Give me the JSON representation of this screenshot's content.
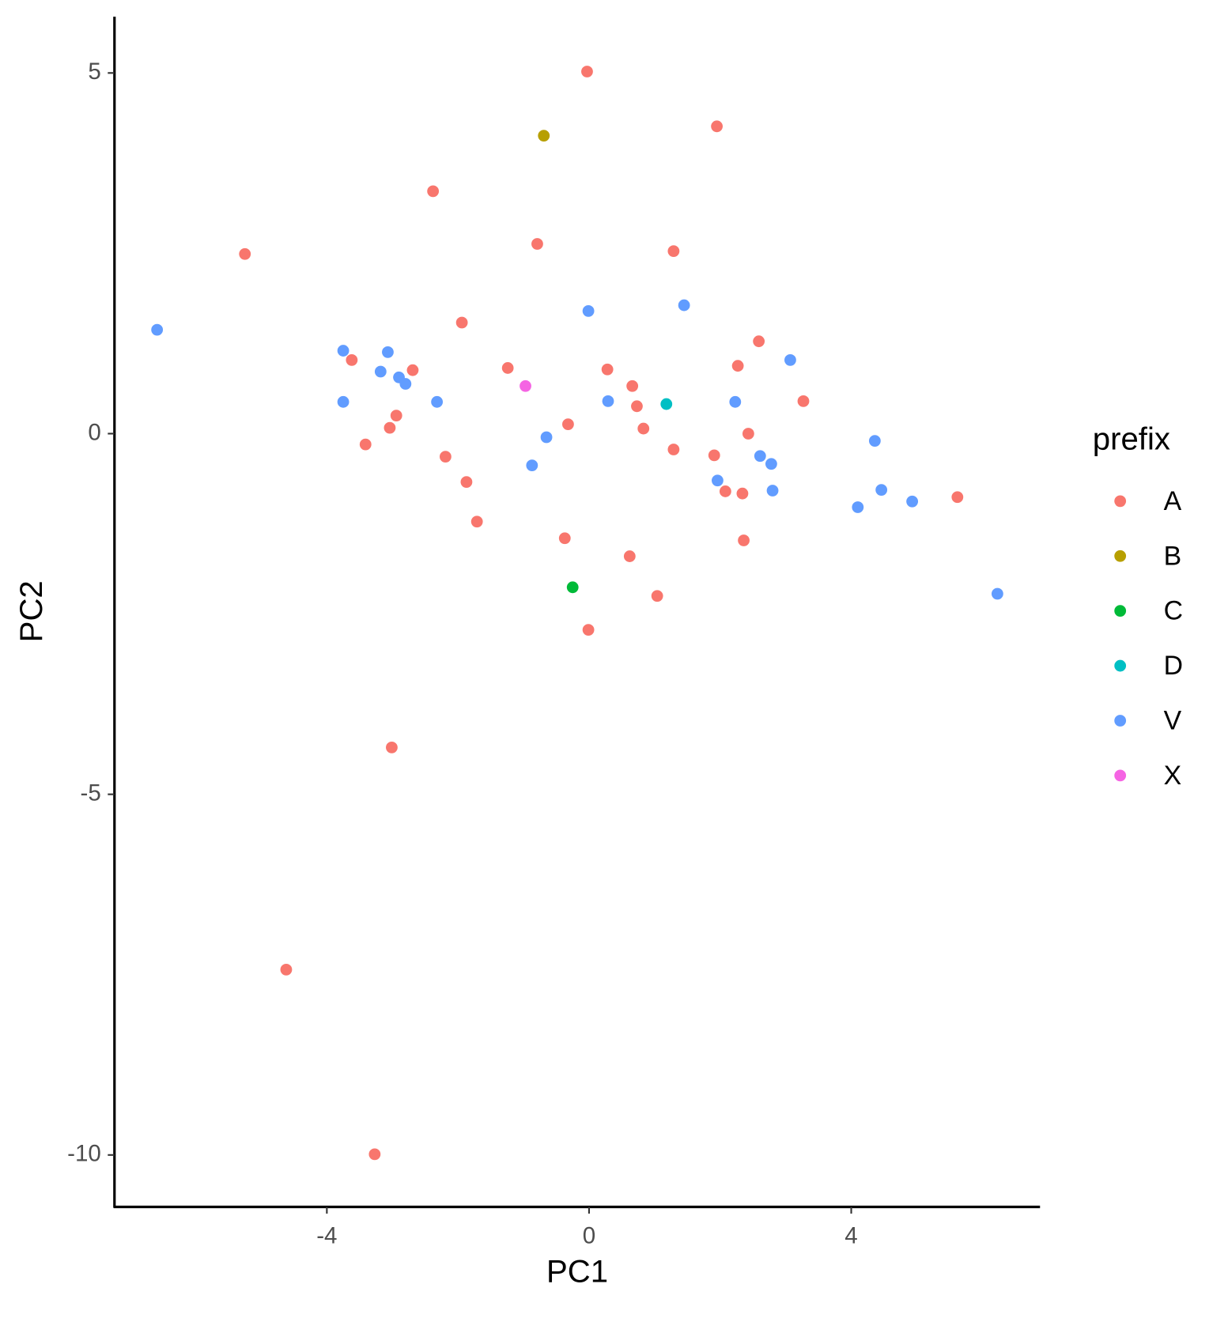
{
  "chart_data": {
    "type": "scatter",
    "x_label": "PC1",
    "y_label": "PC2",
    "legend_title": "prefix",
    "xlim": [
      -7.24,
      6.88
    ],
    "ylim": [
      -10.72,
      5.78
    ],
    "xticks": [
      -4,
      0,
      4
    ],
    "yticks": [
      5,
      0,
      -5,
      -10
    ],
    "grid": false,
    "legend": "right",
    "series": [
      {
        "name": "A",
        "color": "#F8766D",
        "x": [
          -0.03,
          1.95,
          -2.38,
          -5.25,
          -0.79,
          1.29,
          -1.94,
          -3.62,
          -2.69,
          -1.24,
          0.28,
          2.59,
          2.27,
          0.66,
          0.73,
          3.27,
          -2.94,
          -3.04,
          -3.41,
          -0.32,
          0.83,
          -2.19,
          1.29,
          1.91,
          2.43,
          -1.87,
          2.08,
          2.34,
          5.62,
          -1.71,
          -0.37,
          2.36,
          0.62,
          1.04,
          -0.01,
          -3.01,
          -4.62,
          -3.27
        ],
        "y": [
          5.02,
          4.26,
          3.36,
          2.49,
          2.63,
          2.53,
          1.54,
          1.02,
          0.88,
          0.91,
          0.89,
          1.28,
          0.94,
          0.66,
          0.38,
          0.45,
          0.25,
          0.08,
          -0.15,
          0.13,
          0.07,
          -0.32,
          -0.22,
          -0.3,
          0.0,
          -0.67,
          -0.8,
          -0.83,
          -0.88,
          -1.22,
          -1.45,
          -1.48,
          -1.7,
          -2.25,
          -2.72,
          -4.35,
          -7.43,
          -9.99
        ]
      },
      {
        "name": "B",
        "color": "#B79F00",
        "x": [
          -0.69
        ],
        "y": [
          4.13
        ]
      },
      {
        "name": "C",
        "color": "#00BA38",
        "x": [
          -0.25
        ],
        "y": [
          -2.13
        ]
      },
      {
        "name": "D",
        "color": "#00BFC4",
        "x": [
          1.18
        ],
        "y": [
          0.41
        ]
      },
      {
        "name": "V",
        "color": "#619CFF",
        "x": [
          -6.59,
          -3.75,
          -3.07,
          -3.18,
          -2.9,
          -2.8,
          -3.75,
          -2.32,
          -0.01,
          1.45,
          3.07,
          0.29,
          2.23,
          -0.65,
          -0.87,
          2.61,
          2.78,
          1.96,
          2.8,
          4.36,
          4.46,
          4.1,
          4.93,
          6.23
        ],
        "y": [
          1.44,
          1.15,
          1.13,
          0.86,
          0.78,
          0.69,
          0.44,
          0.44,
          1.7,
          1.78,
          1.02,
          0.45,
          0.44,
          -0.05,
          -0.44,
          -0.31,
          -0.42,
          -0.65,
          -0.79,
          -0.1,
          -0.78,
          -1.02,
          -0.94,
          -2.22
        ]
      },
      {
        "name": "X",
        "color": "#F564E3",
        "x": [
          -0.97
        ],
        "y": [
          0.66
        ]
      }
    ]
  }
}
